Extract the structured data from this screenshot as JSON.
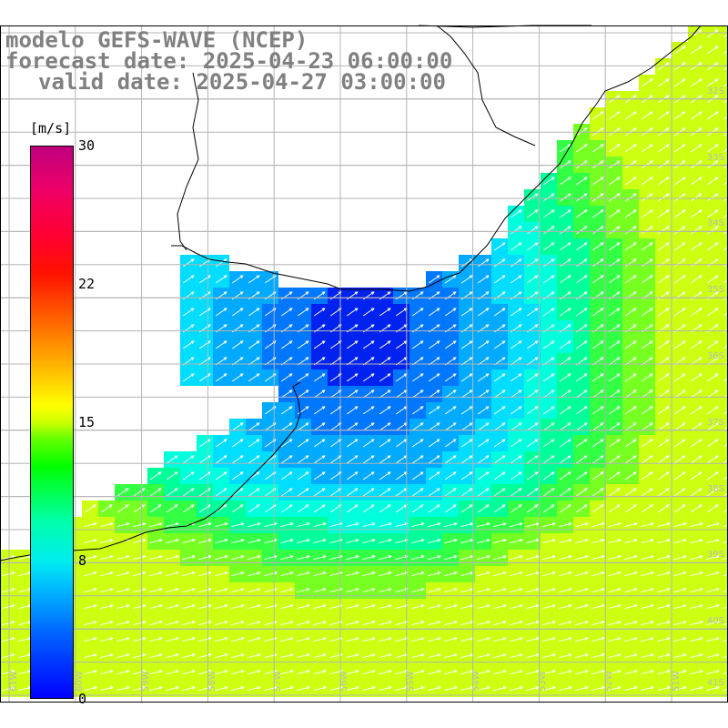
{
  "title": {
    "line1": "modelo GEFS-WAVE (NCEP)",
    "line2": "forecast date: 2025-04-23 06:00:00",
    "line3": "valid date: 2025-04-27 03:00:00"
  },
  "colorbar": {
    "unit": "[m/s]",
    "ticks": [
      "30",
      "22",
      "15",
      "8",
      "0"
    ],
    "tick_values": [
      30,
      22,
      15,
      8,
      0
    ]
  },
  "lat_labels": [
    "32S",
    "33S",
    "34S",
    "35S",
    "36S",
    "37S",
    "38S",
    "39S",
    "40S",
    "41S"
  ],
  "lon_labels": [
    "61W",
    "60W",
    "59W",
    "58W",
    "57W",
    "56W",
    "55W",
    "54W",
    "53W",
    "52W",
    "51W"
  ],
  "colors": {
    "land": "#ffffff",
    "coast": "#000000",
    "grid": "#b4b4b4",
    "arrows": "#ffffff",
    "title": "#808080"
  }
}
